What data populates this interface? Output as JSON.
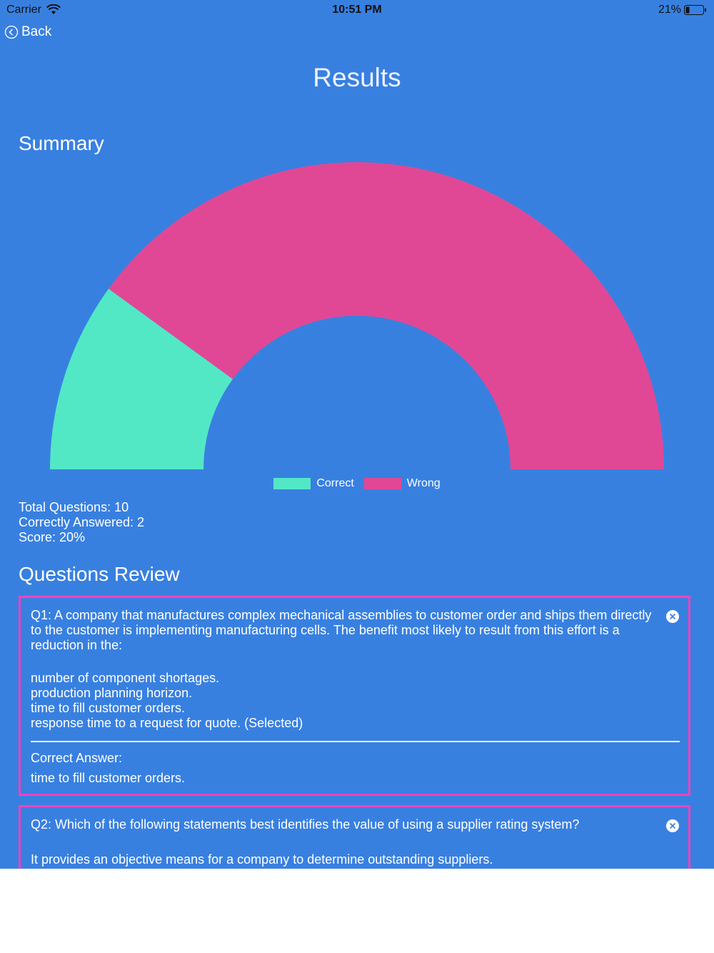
{
  "status_bar": {
    "carrier": "Carrier",
    "time": "10:51 PM",
    "battery": "21%"
  },
  "nav": {
    "back_label": "Back"
  },
  "page": {
    "title": "Results"
  },
  "summary": {
    "heading": "Summary"
  },
  "chart_data": {
    "type": "pie",
    "style": "semicircle-donut",
    "categories": [
      "Correct",
      "Wrong"
    ],
    "values": [
      2,
      8
    ],
    "colors": [
      "#52e8c6",
      "#e04896"
    ],
    "legend": "bottom-center",
    "title": ""
  },
  "stats": {
    "total": "Total Questions: 10",
    "correct": "Correctly Answered: 2",
    "score": "Score: 20%"
  },
  "review": {
    "heading": "Questions Review",
    "questions": [
      {
        "text": "Q1: A company that manufactures complex mechanical assemblies to customer order and ships them directly to the customer is implementing manufacturing cells. The benefit most likely to result from this effort is a reduction in the:",
        "options": [
          "number of component shortages.",
          "production planning horizon.",
          "time to fill customer orders.",
          "response time to a request for quote. (Selected)"
        ],
        "correct_label": "Correct Answer:",
        "correct_answer": "time to fill customer orders."
      },
      {
        "text": "Q2: Which of the following statements best identifies the value of using a supplier rating system?",
        "options": [
          "It provides an objective means for a company to determine outstanding suppliers."
        ]
      }
    ]
  },
  "colors": {
    "background": "#3880e0",
    "correct": "#52e8c6",
    "wrong": "#e04896",
    "card_border": "#ef44c0"
  }
}
